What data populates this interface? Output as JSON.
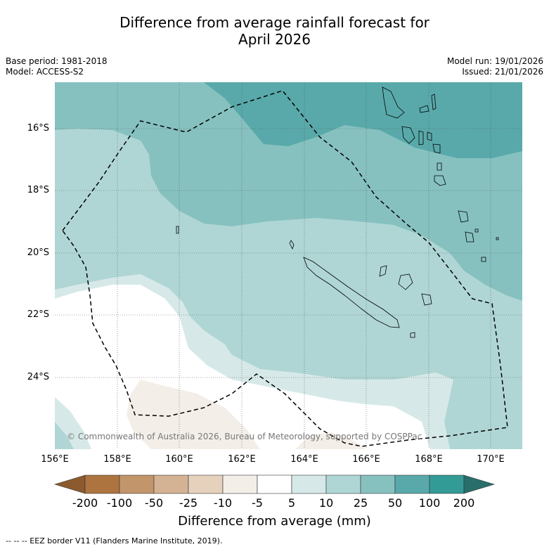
{
  "title_line1": "Difference from average rainfall forecast for",
  "title_line2": "April 2026",
  "base_period": "Base period: 1981-2018",
  "model": "Model: ACCESS-S2",
  "model_run": "Model run: 19/01/2026",
  "issued": "Issued: 21/01/2026",
  "copyright": "© Commonwealth of Australia 2026, Bureau of Meteorology, supported by COSPPac",
  "lat_labels": [
    "16°S",
    "18°S",
    "20°S",
    "22°S",
    "24°S"
  ],
  "lon_labels": [
    "156°E",
    "158°E",
    "160°E",
    "162°E",
    "164°E",
    "166°E",
    "168°E",
    "170°E"
  ],
  "colorbar": {
    "title": "Difference from average (mm)",
    "tick_labels": [
      "-200",
      "-100",
      "-50",
      "-25",
      "-10",
      "-5",
      "5",
      "10",
      "25",
      "50",
      "100",
      "200"
    ],
    "colors": [
      "#8c5a2e",
      "#ad7440",
      "#c3956a",
      "#d4b394",
      "#e6d1bd",
      "#f3eee8",
      "#ffffff",
      "#d6e9e8",
      "#afd6d5",
      "#86c1c0",
      "#59a9aa",
      "#339b96",
      "#2a6e6b"
    ]
  },
  "footer": "--  --  -- EEZ border V11 (Flanders Marine Institute, 2019)."
}
